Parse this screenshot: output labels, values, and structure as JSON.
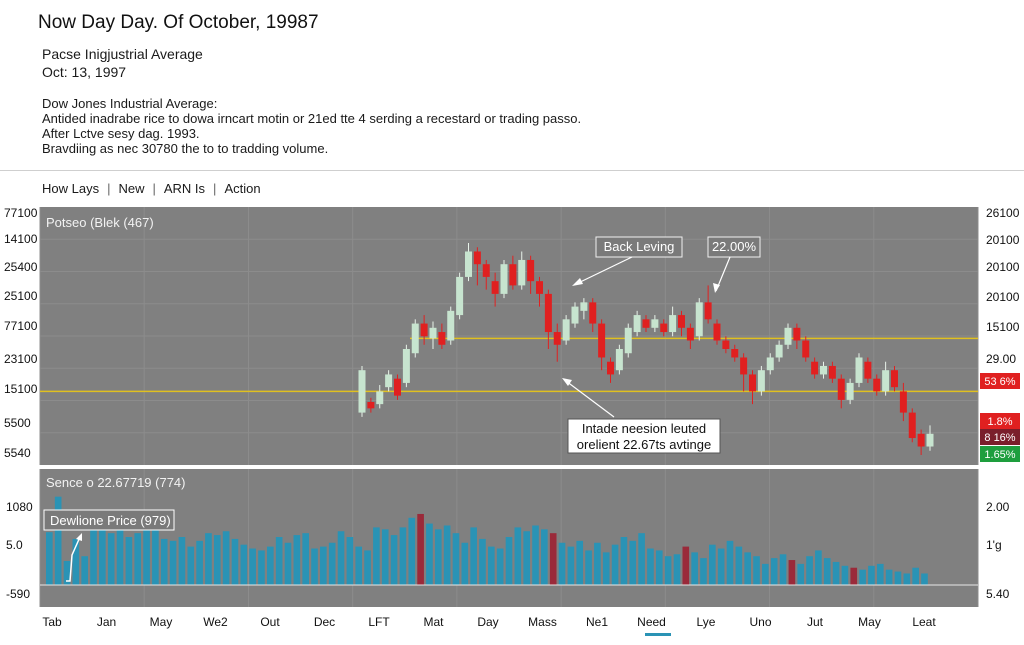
{
  "header": {
    "title": "Now Day Day. Of October, 19987",
    "subtitle_1": "Pacse Inigjustrial Average",
    "subtitle_2": "Oct: 13, 1997",
    "description": [
      "Dow Jones Industrial Average:",
      "Antided inadrabe rice to dowa irncart motin or 21ed tte 4 serding a recestard or trading passo.",
      "After Lctve sesy dag. 1993.",
      "Bravdiing as nec 30780 the to to tradding volume."
    ]
  },
  "menu": {
    "items": [
      "How Lays",
      "New",
      "ARN Is",
      "Action"
    ]
  },
  "colors": {
    "up": "#c7e4cf",
    "down": "#e02020",
    "volume": "#2a93b5",
    "volume_down": "#9a2a3a",
    "panel": "#808080",
    "support_line": "#e0c020"
  },
  "chart_data": {
    "type": "candlestick",
    "title": "Potseo (Blek (467)",
    "price_axis": {
      "left_ticks": [
        "77100",
        "14100",
        "25400",
        "25100",
        "77100",
        "23100",
        "15100",
        "5500",
        "5540"
      ],
      "right_ticks": [
        "26100",
        "20100",
        "20100",
        "20100",
        "15100",
        "29.00"
      ],
      "badges": [
        {
          "text": "53 6%",
          "color": "#e02020"
        },
        {
          "text": "1.8%",
          "color": "#e02020"
        },
        {
          "text": "8 16%",
          "color": "#7a1f2b"
        },
        {
          "text": "1.65%",
          "color": "#1e9e3e"
        }
      ]
    },
    "price_scale": [
      0,
      100
    ],
    "support_levels": [
      55,
      30
    ],
    "annotations": [
      "Back Leving",
      "22.00%",
      "Intade neesion leuted",
      "orelient 22.67ts avtinge"
    ],
    "candles": [
      {
        "o": 20,
        "c": 40,
        "h": 42,
        "l": 18
      },
      {
        "o": 25,
        "c": 22,
        "h": 27,
        "l": 20
      },
      {
        "o": 24,
        "c": 30,
        "h": 33,
        "l": 22
      },
      {
        "o": 32,
        "c": 38,
        "h": 40,
        "l": 30
      },
      {
        "o": 36,
        "c": 28,
        "h": 38,
        "l": 26
      },
      {
        "o": 34,
        "c": 50,
        "h": 52,
        "l": 32
      },
      {
        "o": 48,
        "c": 62,
        "h": 64,
        "l": 46
      },
      {
        "o": 62,
        "c": 56,
        "h": 66,
        "l": 52
      },
      {
        "o": 55,
        "c": 60,
        "h": 63,
        "l": 50
      },
      {
        "o": 58,
        "c": 52,
        "h": 62,
        "l": 50
      },
      {
        "o": 54,
        "c": 68,
        "h": 70,
        "l": 52
      },
      {
        "o": 66,
        "c": 84,
        "h": 86,
        "l": 64
      },
      {
        "o": 84,
        "c": 96,
        "h": 100,
        "l": 82
      },
      {
        "o": 96,
        "c": 90,
        "h": 98,
        "l": 80
      },
      {
        "o": 90,
        "c": 84,
        "h": 92,
        "l": 78
      },
      {
        "o": 82,
        "c": 76,
        "h": 86,
        "l": 70
      },
      {
        "o": 76,
        "c": 90,
        "h": 92,
        "l": 74
      },
      {
        "o": 90,
        "c": 80,
        "h": 94,
        "l": 78
      },
      {
        "o": 80,
        "c": 92,
        "h": 96,
        "l": 78
      },
      {
        "o": 92,
        "c": 82,
        "h": 94,
        "l": 76
      },
      {
        "o": 82,
        "c": 76,
        "h": 84,
        "l": 70
      },
      {
        "o": 76,
        "c": 58,
        "h": 78,
        "l": 50
      },
      {
        "o": 58,
        "c": 52,
        "h": 62,
        "l": 44
      },
      {
        "o": 54,
        "c": 64,
        "h": 66,
        "l": 52
      },
      {
        "o": 62,
        "c": 70,
        "h": 72,
        "l": 60
      },
      {
        "o": 68,
        "c": 72,
        "h": 74,
        "l": 64
      },
      {
        "o": 72,
        "c": 62,
        "h": 74,
        "l": 58
      },
      {
        "o": 62,
        "c": 46,
        "h": 64,
        "l": 40
      },
      {
        "o": 44,
        "c": 38,
        "h": 46,
        "l": 34
      },
      {
        "o": 40,
        "c": 50,
        "h": 52,
        "l": 38
      },
      {
        "o": 48,
        "c": 60,
        "h": 62,
        "l": 46
      },
      {
        "o": 58,
        "c": 66,
        "h": 68,
        "l": 56
      },
      {
        "o": 64,
        "c": 60,
        "h": 66,
        "l": 58
      },
      {
        "o": 60,
        "c": 64,
        "h": 66,
        "l": 58
      },
      {
        "o": 62,
        "c": 58,
        "h": 64,
        "l": 56
      },
      {
        "o": 58,
        "c": 66,
        "h": 70,
        "l": 56
      },
      {
        "o": 66,
        "c": 60,
        "h": 68,
        "l": 56
      },
      {
        "o": 60,
        "c": 54,
        "h": 62,
        "l": 50
      },
      {
        "o": 56,
        "c": 72,
        "h": 74,
        "l": 54
      },
      {
        "o": 72,
        "c": 64,
        "h": 80,
        "l": 62
      },
      {
        "o": 62,
        "c": 54,
        "h": 64,
        "l": 52
      },
      {
        "o": 54,
        "c": 50,
        "h": 56,
        "l": 48
      },
      {
        "o": 50,
        "c": 46,
        "h": 52,
        "l": 44
      },
      {
        "o": 46,
        "c": 38,
        "h": 48,
        "l": 30
      },
      {
        "o": 38,
        "c": 30,
        "h": 40,
        "l": 24
      },
      {
        "o": 30,
        "c": 40,
        "h": 42,
        "l": 28
      },
      {
        "o": 40,
        "c": 46,
        "h": 48,
        "l": 38
      },
      {
        "o": 46,
        "c": 52,
        "h": 54,
        "l": 44
      },
      {
        "o": 52,
        "c": 60,
        "h": 62,
        "l": 50
      },
      {
        "o": 60,
        "c": 54,
        "h": 62,
        "l": 50
      },
      {
        "o": 54,
        "c": 46,
        "h": 56,
        "l": 44
      },
      {
        "o": 44,
        "c": 38,
        "h": 46,
        "l": 36
      },
      {
        "o": 38,
        "c": 42,
        "h": 44,
        "l": 36
      },
      {
        "o": 42,
        "c": 36,
        "h": 44,
        "l": 34
      },
      {
        "o": 36,
        "c": 26,
        "h": 38,
        "l": 22
      },
      {
        "o": 26,
        "c": 34,
        "h": 36,
        "l": 24
      },
      {
        "o": 34,
        "c": 46,
        "h": 48,
        "l": 32
      },
      {
        "o": 44,
        "c": 36,
        "h": 46,
        "l": 34
      },
      {
        "o": 36,
        "c": 30,
        "h": 38,
        "l": 28
      },
      {
        "o": 30,
        "c": 40,
        "h": 44,
        "l": 28
      },
      {
        "o": 40,
        "c": 32,
        "h": 42,
        "l": 30
      },
      {
        "o": 30,
        "c": 20,
        "h": 34,
        "l": 16
      },
      {
        "o": 20,
        "c": 8,
        "h": 22,
        "l": 6
      },
      {
        "o": 10,
        "c": 4,
        "h": 12,
        "l": 0
      },
      {
        "o": 4,
        "c": 10,
        "h": 14,
        "l": 2
      }
    ],
    "volume": {
      "title": "Sence o 22.67719 (774)",
      "label": "Dewlione Price (979)",
      "left_ticks": [
        "1080",
        "5.0",
        "-590"
      ],
      "right_ticks": [
        "2.00",
        "1'g",
        "5.40"
      ],
      "scale": [
        0,
        100
      ],
      "values": [
        55,
        92,
        25,
        48,
        30,
        72,
        66,
        54,
        58,
        50,
        54,
        62,
        60,
        48,
        46,
        50,
        40,
        46,
        54,
        52,
        56,
        48,
        42,
        38,
        36,
        40,
        50,
        44,
        52,
        54,
        38,
        40,
        44,
        56,
        50,
        40,
        36,
        60,
        58,
        52,
        60,
        70,
        74,
        64,
        58,
        62,
        54,
        44,
        60,
        48,
        40,
        38,
        50,
        60,
        56,
        62,
        58,
        54,
        44,
        40,
        46,
        36,
        44,
        34,
        42,
        50,
        46,
        54,
        38,
        36,
        30,
        32,
        40,
        34,
        28,
        42,
        38,
        46,
        40,
        34,
        30,
        22,
        28,
        32,
        26,
        22,
        30,
        36,
        28,
        24,
        20,
        18,
        16,
        20,
        22,
        16,
        14,
        12,
        18,
        12
      ],
      "down_index": [
        42,
        57,
        72,
        84,
        91
      ]
    },
    "x_labels": [
      "Tab",
      "Jan",
      "May",
      "We2",
      "Out",
      "Dec",
      "LFT",
      "Mat",
      "Day",
      "Mass",
      "Ne1",
      "Need",
      "Lye",
      "Uno",
      "Jut",
      "May",
      "Leat"
    ]
  }
}
